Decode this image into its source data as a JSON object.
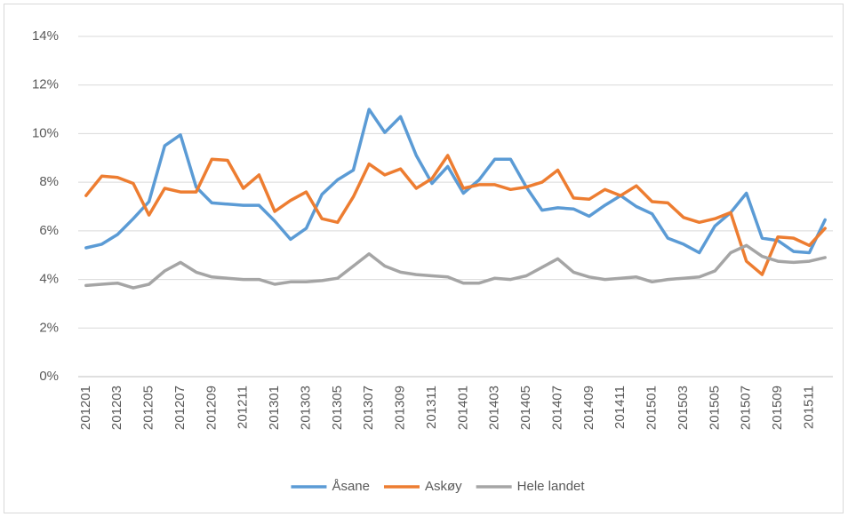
{
  "chart_data": {
    "type": "line",
    "categories": [
      "201201",
      null,
      "201203",
      null,
      "201205",
      null,
      "201207",
      null,
      "201209",
      null,
      "201211",
      null,
      "201301",
      null,
      "201303",
      null,
      "201305",
      null,
      "201307",
      null,
      "201309",
      null,
      "201311",
      null,
      "201401",
      null,
      "201403",
      null,
      "201405",
      null,
      "201407",
      null,
      "201409",
      null,
      "201411",
      null,
      "201501",
      null,
      "201503",
      null,
      "201505",
      null,
      "201507",
      null,
      "201509",
      null,
      "201511",
      null
    ],
    "series": [
      {
        "name": "Åsane",
        "color": "#5b9bd5",
        "values": [
          5.3,
          5.45,
          5.85,
          6.5,
          7.2,
          9.5,
          9.95,
          7.8,
          7.15,
          7.1,
          7.05,
          7.05,
          6.4,
          5.65,
          6.1,
          7.5,
          8.1,
          8.5,
          11.0,
          10.05,
          10.7,
          9.1,
          7.95,
          8.65,
          7.55,
          8.1,
          8.95,
          8.95,
          7.8,
          6.85,
          6.95,
          6.9,
          6.6,
          7.05,
          7.45,
          7.0,
          6.7,
          5.7,
          5.45,
          5.1,
          6.2,
          6.75,
          7.55,
          5.7,
          5.6,
          5.15,
          5.1,
          6.45
        ]
      },
      {
        "name": "Askøy",
        "color": "#ed7d31",
        "values": [
          7.45,
          8.25,
          8.2,
          7.95,
          6.65,
          7.75,
          7.6,
          7.6,
          8.95,
          8.9,
          7.75,
          8.3,
          6.8,
          7.25,
          7.6,
          6.5,
          6.35,
          7.4,
          8.75,
          8.3,
          8.55,
          7.75,
          8.15,
          9.1,
          7.75,
          7.9,
          7.9,
          7.7,
          7.8,
          8.0,
          8.5,
          7.35,
          7.3,
          7.7,
          7.45,
          7.85,
          7.2,
          7.15,
          6.55,
          6.35,
          6.5,
          6.75,
          4.75,
          4.2,
          5.75,
          5.7,
          5.4,
          6.1
        ]
      },
      {
        "name": "Hele landet",
        "color": "#a5a5a5",
        "values": [
          3.75,
          3.8,
          3.85,
          3.65,
          3.8,
          4.35,
          4.7,
          4.3,
          4.1,
          4.05,
          4.0,
          4.0,
          3.8,
          3.9,
          3.9,
          3.95,
          4.05,
          4.55,
          5.05,
          4.55,
          4.3,
          4.2,
          4.15,
          4.1,
          3.85,
          3.85,
          4.05,
          4.0,
          4.15,
          4.5,
          4.85,
          4.3,
          4.1,
          4.0,
          4.05,
          4.1,
          3.9,
          4.0,
          4.05,
          4.1,
          4.35,
          5.1,
          5.4,
          4.95,
          4.75,
          4.7,
          4.75,
          4.9
        ]
      }
    ],
    "ylim": [
      0,
      14
    ],
    "yticks": [
      {
        "value": 0,
        "label": "0%"
      },
      {
        "value": 2,
        "label": "2%"
      },
      {
        "value": 4,
        "label": "4%"
      },
      {
        "value": 6,
        "label": "6%"
      },
      {
        "value": 8,
        "label": "8%"
      },
      {
        "value": 10,
        "label": "10%"
      },
      {
        "value": 12,
        "label": "12%"
      },
      {
        "value": 14,
        "label": "14%"
      }
    ],
    "grid": true,
    "legend": "bottom"
  }
}
